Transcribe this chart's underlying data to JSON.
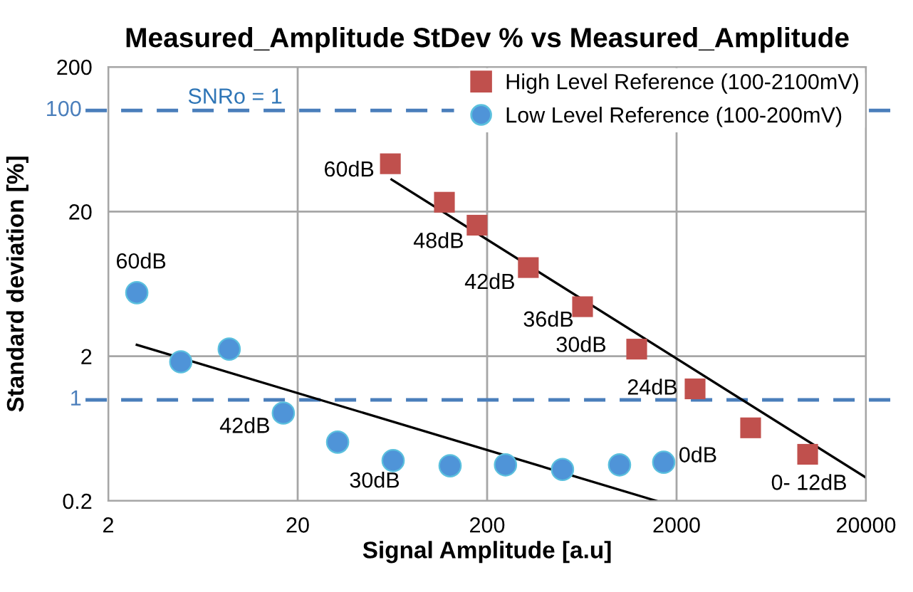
{
  "chart_data": {
    "type": "scatter",
    "title": "Measured_Amplitude StDev % vs Measured_Amplitude",
    "xlabel": "Signal Amplitude [a.u]",
    "ylabel": "Standard deviation [%]",
    "log": "xy",
    "xlim": [
      2,
      20000
    ],
    "xticks": [
      2,
      20,
      200,
      2000,
      20000
    ],
    "ylim": [
      0.2,
      200
    ],
    "yticks": [
      0.2,
      2,
      20,
      200
    ],
    "grid": true,
    "legend": "top right",
    "series": [
      {
        "name": "High Level Reference (100-2100mV)",
        "marker": "square",
        "color": "#c0504d",
        "x": [
          61.7,
          119,
          177,
          330,
          638,
          1232,
          2505,
          4920,
          9840
        ],
        "values": [
          42.8,
          23.2,
          16.1,
          8.2,
          4.4,
          2.24,
          1.19,
          0.64,
          0.42
        ]
      },
      {
        "name": "Low Level Reference (100-200mV)",
        "marker": "circle",
        "color": "#4f94d8",
        "x": [
          2.83,
          4.83,
          8.7,
          16.8,
          32.5,
          63.8,
          127.5,
          250,
          500,
          1000,
          1711
        ],
        "values": [
          5.5,
          1.83,
          2.24,
          0.81,
          0.51,
          0.38,
          0.35,
          0.355,
          0.33,
          0.355,
          0.37
        ]
      },
      {
        "type": "line",
        "color": "#000000",
        "x": [
          62.6,
          20000
        ],
        "values": [
          33.3,
          0.29
        ]
      },
      {
        "type": "line",
        "color": "#000000",
        "x": [
          2.83,
          1570
        ],
        "values": [
          2.4,
          0.2
        ]
      }
    ],
    "ref_lines": [
      {
        "axis": "y",
        "value": 100,
        "label": "100",
        "color": "#4a7ebb",
        "line_style": "dashed"
      },
      {
        "axis": "y",
        "value": 1,
        "label": "1",
        "color": "#4a7ebb",
        "line_style": "dashed"
      }
    ],
    "annotations": [
      "SNRo = 1",
      {
        "text": "60dB",
        "x": 61.7,
        "y": 42.8
      },
      {
        "text": "48dB",
        "x": 177,
        "y": 16.1
      },
      {
        "text": "42dB",
        "x": 330,
        "y": 8.2
      },
      {
        "text": "36dB",
        "x": 638,
        "y": 4.4
      },
      {
        "text": "30dB",
        "x": 1232,
        "y": 2.24
      },
      {
        "text": "24dB",
        "x": 2505,
        "y": 1.19
      },
      {
        "text": "0- 12dB",
        "x": 9840,
        "y": 0.42
      },
      {
        "text": "60dB",
        "x": 2.83,
        "y": 5.5
      },
      {
        "text": "42dB",
        "x": 16.8,
        "y": 0.81
      },
      {
        "text": "30dB",
        "x": 63.8,
        "y": 0.38
      },
      {
        "text": "0dB",
        "x": 1711,
        "y": 0.37
      }
    ]
  }
}
